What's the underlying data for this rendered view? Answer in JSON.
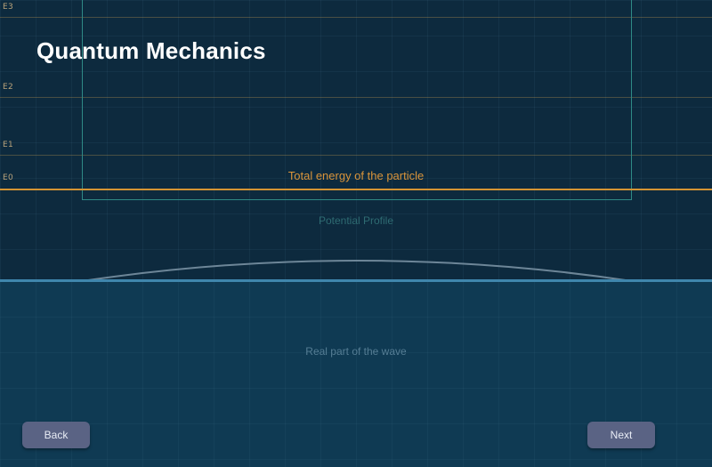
{
  "page": {
    "title": "Quantum Mechanics"
  },
  "energy_levels": [
    {
      "label": "E3"
    },
    {
      "label": "E2"
    },
    {
      "label": "E1"
    },
    {
      "label": "E0"
    }
  ],
  "labels": {
    "total_energy": "Total energy of the particle",
    "potential_profile": "Potential Profile",
    "wave_real_part": "Real part of the wave"
  },
  "navigation": {
    "back_label": "Back",
    "next_label": "Next"
  },
  "colors": {
    "background": "#0d2a3e",
    "lower_panel": "#0f3a53",
    "energy_line": "#d49433",
    "well_border": "#2f8a86",
    "button": "#5a6384"
  }
}
